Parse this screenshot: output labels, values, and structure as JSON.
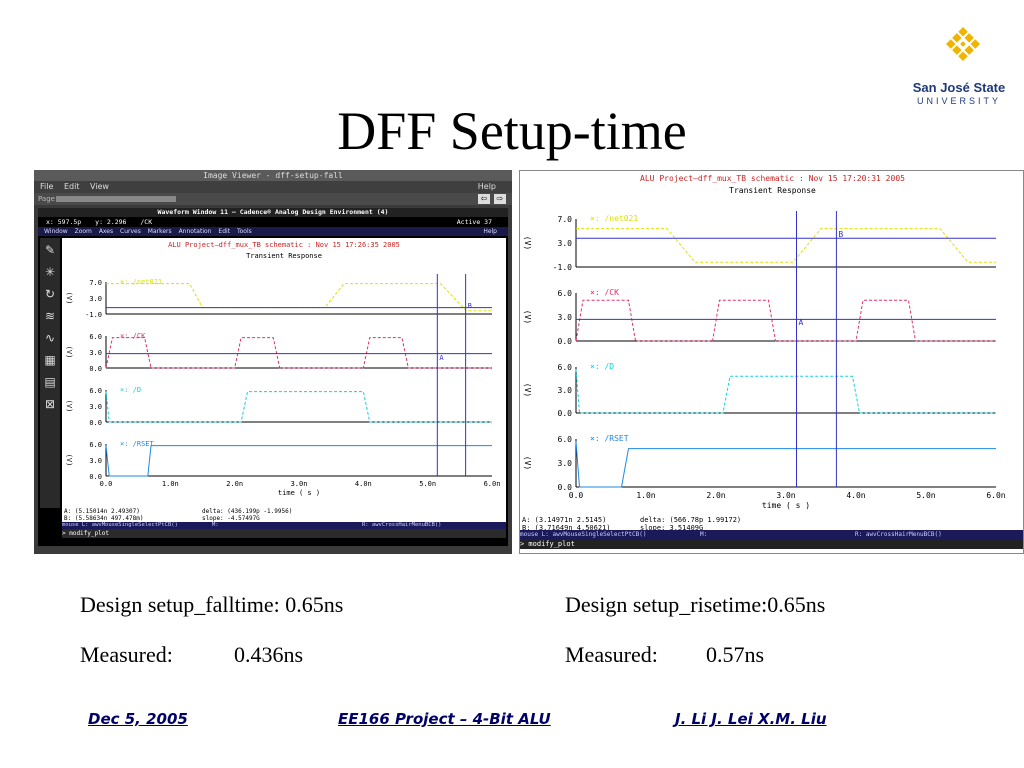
{
  "slide": {
    "title": "DFF Setup-time",
    "logo": {
      "line1": "San José State",
      "line2": "UNIVERSITY",
      "accent": "#f0b400",
      "text_color": "#1f3a7a"
    }
  },
  "left_shot": {
    "viewer_title": "Image Viewer - dff-setup-fall",
    "menu": [
      "File",
      "Edit",
      "View"
    ],
    "menu_help": "Help",
    "page_label": "Page",
    "window_title": "Waveform Window 11 — Cadence® Analog Design Environment (4)",
    "coord_x": "x: 597.5p",
    "coord_y": "y: 2.296",
    "coord_sig": "/CK",
    "active": "Active   37",
    "ww_menu": [
      "Window",
      "Zoom",
      "Axes",
      "Curves",
      "Markers",
      "Annotation",
      "Edit",
      "Tools"
    ],
    "ww_help": "Help",
    "plot_header": "ALU Project—dff_mux_TB schematic : Nov 15 17:26:35 2005",
    "plot_title": "Transient Response",
    "readout_a": "A: (5.15014n 2.49307)",
    "readout_delta": "delta: (436.199p -1.9956)",
    "readout_b": "B: (5.58634n 497.478m)",
    "readout_slope": "slope: -4.57497G",
    "mouse_l": "mouse L: awvMouseSingleSelectPtCB()",
    "mouse_m": "M:",
    "mouse_r": "R: awvCrossHairMenuBCB()",
    "cmd": "> modify_plot"
  },
  "right_shot": {
    "plot_header": "ALU Project—dff_mux_TB schematic : Nov 15 17:20:31 2005",
    "plot_title": "Transient Response",
    "readout_a": "A: (3.14971n 2.5145)",
    "readout_delta": "delta: (566.78p 1.99172)",
    "readout_b": "B: (3.71649n 4.50621)",
    "readout_slope": "slope: 3.51409G",
    "mouse_l": "mouse L: awvMouseSingleSelectPtCB()",
    "mouse_m": "M:",
    "mouse_r": "R: awvCrossHairMenuBCB()",
    "cmd": "> modify_plot"
  },
  "waveform": {
    "yaxis_unit": "(V)",
    "xaxis_label": "time ( s )",
    "xticks": [
      "0.0",
      "1.0n",
      "2.0n",
      "3.0n",
      "4.0n",
      "5.0n",
      "6.0n"
    ],
    "panels": [
      {
        "name": "/net021",
        "yticks": [
          "7.0",
          "3.0",
          "-1.0"
        ],
        "color": "#e0e000"
      },
      {
        "name": "/CK",
        "yticks": [
          "6.0",
          "3.0",
          "0.0"
        ],
        "color": "#e0306a"
      },
      {
        "name": "/D",
        "yticks": [
          "6.0",
          "3.0",
          "0.0"
        ],
        "color": "#10d0e0"
      },
      {
        "name": "/RSET",
        "yticks": [
          "6.0",
          "3.0",
          "0.0"
        ],
        "color": "#1e88e5"
      }
    ],
    "marker_a": "A",
    "marker_b": "B",
    "marker_color": "#3333cc"
  },
  "stats": {
    "left_design": "Design setup_falltime: 0.65ns",
    "left_measured_label": "Measured:",
    "left_measured_value": "0.436ns",
    "right_design": "Design setup_risetime:0.65ns",
    "right_measured_label": "Measured:",
    "right_measured_value": "0.57ns"
  },
  "footer": {
    "date": "Dec 5, 2005",
    "project": "EE166 Project – 4-Bit ALU",
    "authors": "J. Li  J. Lei  X.M. Liu"
  }
}
